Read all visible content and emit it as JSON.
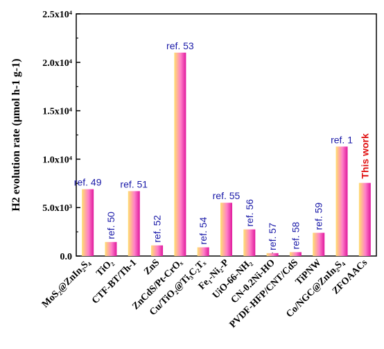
{
  "colors": {
    "bar_magenta": "#e0199d",
    "bar_yellow": "#ffe070",
    "ref_label": "#1a1aa8",
    "highlight_label": "#e01010",
    "axis": "#000000"
  },
  "chart_data": {
    "type": "bar",
    "ylabel": "H2 evolution rate (μmol h-1 g-1)",
    "ylim": [
      0,
      25000
    ],
    "yticks": [
      0,
      5000,
      10000,
      15000,
      20000,
      25000
    ],
    "ytick_labels": [
      "0.0",
      "5.0x10³",
      "1.0x10⁴",
      "1.5x10⁴",
      "2.0x10⁴",
      "2.5x10⁴"
    ],
    "categories": [
      "MoS₂@ZnIn₂S₄",
      "TiO₂",
      "CTF-BT/Th-1",
      "ZnS",
      "ZnCdS/Pt-CrOₓ",
      "Cu/TiO₂@Ti₃C₂Tₓ",
      "Fe₁-Ni₂-P",
      "UiO-66-NH₂",
      "CN-0.2Ni-HO",
      "PVDF-HFP/CNT/CdS",
      "TiPNW",
      "Co/NGC@ZnIn₂S₄",
      "ZFOAACs"
    ],
    "values": [
      6900,
      1450,
      6700,
      1100,
      21000,
      900,
      5500,
      2750,
      300,
      400,
      2400,
      11300,
      7550
    ],
    "bar_labels": [
      "ref. 49",
      "ref. 50",
      "ref. 51",
      "ref. 52",
      "ref. 53",
      "ref. 54",
      "ref. 55",
      "ref. 56",
      "ref. 57",
      "ref. 58",
      "ref. 59",
      "ref. 1",
      "This work"
    ],
    "highlight_index": 12,
    "grid": false
  }
}
